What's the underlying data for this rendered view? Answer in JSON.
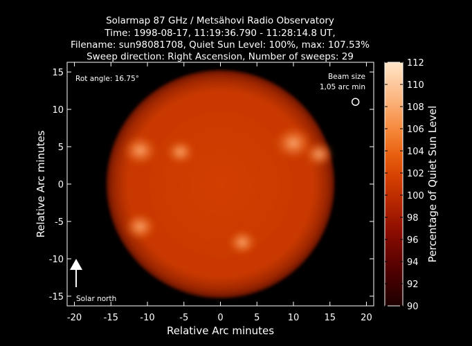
{
  "titles": [
    "Solarmap 87 GHz / Metsähovi Radio Observatory",
    "Time: 1998-08-17, 11:19:36.790 - 11:28:14.8 UT,",
    "Filename: sun98081708, Quiet Sun Level: 100%, max: 107.53%",
    "Sweep direction: Right Ascension, Number of sweeps: 29"
  ],
  "annotations": {
    "rot_angle": "Rot angle: 16.75°",
    "beam_size_line1": "Beam size",
    "beam_size_line2": "1,05 arc min",
    "solar_north": "Solar north"
  },
  "colors": {
    "background": "#000000",
    "low": "#2a0000",
    "mid": "#cc3a00",
    "high": "#ffe6c8"
  },
  "chart_data": {
    "type": "heatmap",
    "xlabel": "Relative Arc minutes",
    "ylabel": "Relative Arc minutes",
    "colorbar_label": "Percentage of Quiet Sun Level",
    "xlim": [
      -21,
      21
    ],
    "ylim": [
      -16.3,
      16.3
    ],
    "xticks": [
      -20,
      -15,
      -10,
      -5,
      0,
      5,
      10,
      15,
      20
    ],
    "yticks": [
      -15,
      -10,
      -5,
      0,
      5,
      10,
      15
    ],
    "colorbar_range": [
      90,
      112
    ],
    "colorbar_ticks": [
      90,
      92,
      94,
      96,
      98,
      100,
      102,
      104,
      106,
      108,
      110,
      112
    ],
    "disk_center": [
      0,
      0
    ],
    "disk_radius_arcmin": 15.6,
    "quiet_sun_level_percent": 100,
    "max_percent": 107.53,
    "bright_regions": [
      {
        "x": -11,
        "y": 4.5,
        "percent": 104
      },
      {
        "x": -5.5,
        "y": 4.3,
        "percent": 103
      },
      {
        "x": 10,
        "y": 5.5,
        "percent": 104.5
      },
      {
        "x": 13.5,
        "y": 4.0,
        "percent": 103
      },
      {
        "x": -11,
        "y": -5.7,
        "percent": 103.5
      },
      {
        "x": 3.0,
        "y": -7.8,
        "percent": 103
      }
    ],
    "beam_marker": {
      "x": 18.5,
      "y": 11.0
    }
  }
}
